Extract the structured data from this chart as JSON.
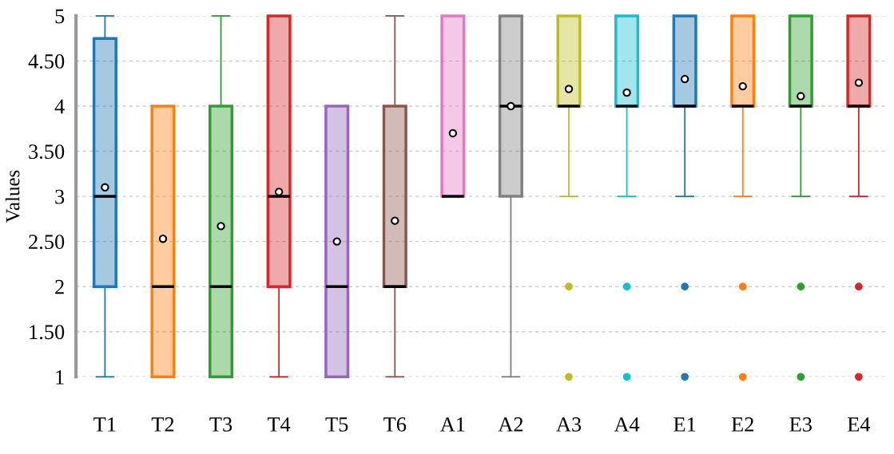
{
  "chart_data": {
    "type": "box",
    "ylabel": "Values",
    "categories": [
      "T1",
      "T2",
      "T3",
      "T4",
      "T5",
      "T6",
      "A1",
      "A2",
      "A3",
      "A4",
      "E1",
      "E2",
      "E3",
      "E4"
    ],
    "colors": [
      "#1f77b4",
      "#ff7f0e",
      "#2ca02c",
      "#d62728",
      "#9467bd",
      "#8c564b",
      "#e377c2",
      "#7f7f7f",
      "#bcbd22",
      "#17becf",
      "#1f77b4",
      "#ff7f0e",
      "#2ca02c",
      "#d62728"
    ],
    "boxes": [
      {
        "low": 1,
        "q1": 2,
        "median": 3,
        "q3": 4.75,
        "high": 5,
        "mean": 3.1
      },
      {
        "low": 1,
        "q1": 1,
        "median": 2,
        "q3": 4,
        "high": 4,
        "mean": 2.53
      },
      {
        "low": 1,
        "q1": 1,
        "median": 2,
        "q3": 4,
        "high": 5,
        "mean": 2.67
      },
      {
        "low": 1,
        "q1": 2,
        "median": 3,
        "q3": 5,
        "high": 5,
        "mean": 3.05
      },
      {
        "low": 1,
        "q1": 1,
        "median": 2,
        "q3": 4,
        "high": 4,
        "mean": 2.5
      },
      {
        "low": 1,
        "q1": 2,
        "median": 2,
        "q3": 4,
        "high": 5,
        "mean": 2.73
      },
      {
        "low": 3,
        "q1": 3,
        "median": 3,
        "q3": 5,
        "high": 5,
        "mean": 3.7
      },
      {
        "low": 1,
        "q1": 3,
        "median": 4,
        "q3": 5,
        "high": 5,
        "mean": 4.0
      },
      {
        "low": 3,
        "q1": 4,
        "median": 4,
        "q3": 5,
        "high": 5,
        "mean": 4.19,
        "outliers": [
          2,
          1
        ]
      },
      {
        "low": 3,
        "q1": 4,
        "median": 4,
        "q3": 5,
        "high": 5,
        "mean": 4.15,
        "outliers": [
          2,
          1
        ]
      },
      {
        "low": 3,
        "q1": 4,
        "median": 4,
        "q3": 5,
        "high": 5,
        "mean": 4.3,
        "outliers": [
          2,
          1
        ]
      },
      {
        "low": 3,
        "q1": 4,
        "median": 4,
        "q3": 5,
        "high": 5,
        "mean": 4.22,
        "outliers": [
          2,
          1
        ]
      },
      {
        "low": 3,
        "q1": 4,
        "median": 4,
        "q3": 5,
        "high": 5,
        "mean": 4.11,
        "outliers": [
          2,
          1
        ]
      },
      {
        "low": 3,
        "q1": 4,
        "median": 4,
        "q3": 5,
        "high": 5,
        "mean": 4.26,
        "outliers": [
          2,
          1
        ]
      }
    ],
    "ylim": [
      1,
      5
    ],
    "yticks": [
      1,
      {
        "value": 1.5,
        "label": "1.50"
      },
      2,
      {
        "value": 2.5,
        "label": "2.50"
      },
      3,
      {
        "value": 3.5,
        "label": "3.50"
      },
      4,
      {
        "value": 4.5,
        "label": "4.50"
      },
      5
    ],
    "grid": "y",
    "legend": false
  }
}
